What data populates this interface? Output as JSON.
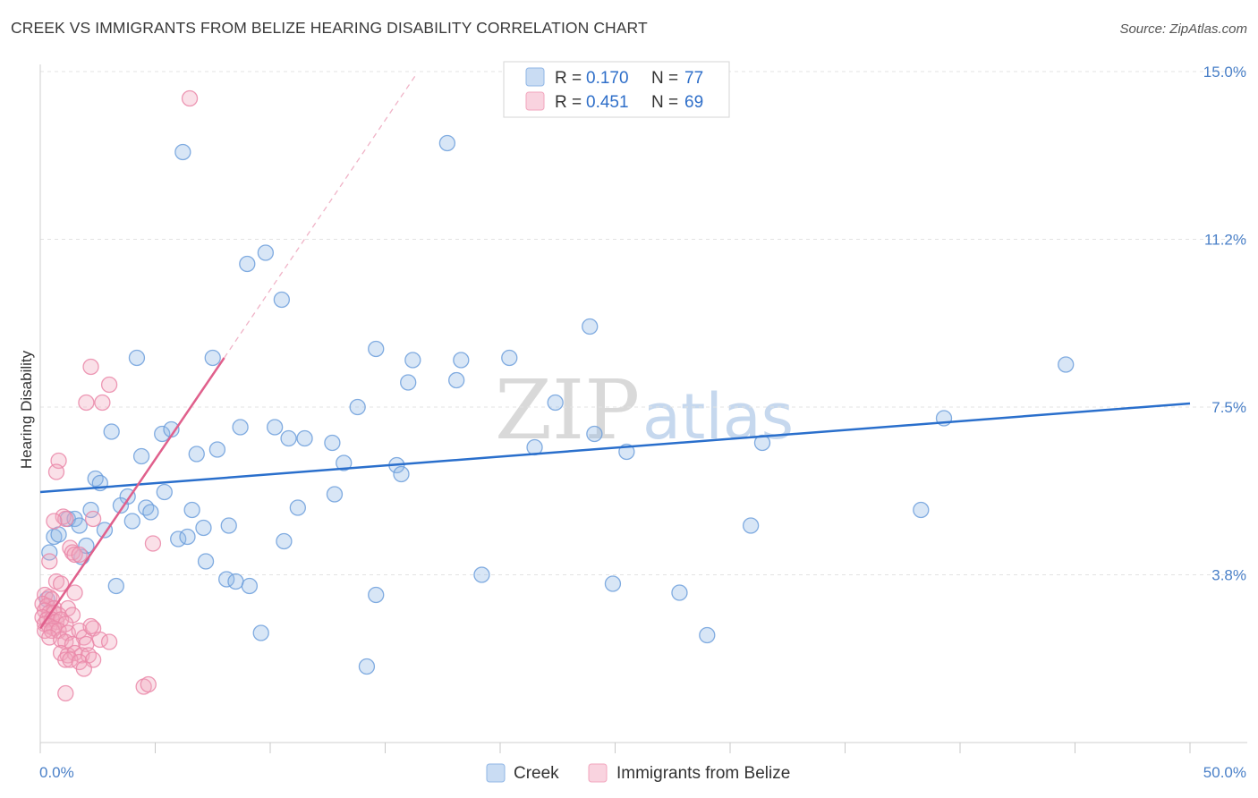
{
  "header": {
    "title": "CREEK VS IMMIGRANTS FROM BELIZE HEARING DISABILITY CORRELATION CHART",
    "source": "Source: ZipAtlas.com"
  },
  "watermark": {
    "zip": "ZIP",
    "atlas": "atlas"
  },
  "legend_top": [
    {
      "r_label": "R = ",
      "r_value": "0.170",
      "n_label": "N = ",
      "n_value": "77",
      "color": "#8fb6e6"
    },
    {
      "r_label": "R = ",
      "r_value": "0.451",
      "n_label": "N = ",
      "n_value": "69",
      "color": "#f2a6be"
    }
  ],
  "legend_bottom": [
    {
      "label": "Creek",
      "color": "#8fb6e6"
    },
    {
      "label": "Immigrants from Belize",
      "color": "#f2a6be"
    }
  ],
  "chart_data": {
    "type": "scatter",
    "xlabel": "",
    "ylabel": "Hearing Disability",
    "xlim": [
      0,
      50
    ],
    "ylim": [
      0,
      15
    ],
    "x_tick_labels": [
      "0.0%",
      "50.0%"
    ],
    "y_ticks": [
      {
        "value": 3.75,
        "label": "3.8%"
      },
      {
        "value": 7.5,
        "label": "7.5%"
      },
      {
        "value": 11.25,
        "label": "11.2%"
      },
      {
        "value": 15.0,
        "label": "15.0%"
      }
    ],
    "grid": true,
    "colors": {
      "creek": "#8fb6e6",
      "creek_line": "#2a6fcc",
      "belize": "#f2a6be",
      "belize_line": "#e0608c"
    },
    "series": [
      {
        "name": "Creek",
        "trend": {
          "x": [
            0,
            50
          ],
          "y": [
            5.6,
            7.58
          ]
        },
        "points": [
          [
            6.2,
            13.2
          ],
          [
            17.7,
            13.4
          ],
          [
            9.0,
            10.7
          ],
          [
            9.8,
            10.95
          ],
          [
            10.5,
            9.9
          ],
          [
            23.9,
            9.3
          ],
          [
            14.6,
            8.8
          ],
          [
            16.2,
            8.55
          ],
          [
            18.3,
            8.55
          ],
          [
            20.4,
            8.6
          ],
          [
            4.2,
            8.6
          ],
          [
            7.5,
            8.6
          ],
          [
            44.6,
            8.45
          ],
          [
            16.0,
            8.05
          ],
          [
            18.1,
            8.1
          ],
          [
            13.8,
            7.5
          ],
          [
            22.4,
            7.6
          ],
          [
            3.1,
            6.95
          ],
          [
            5.3,
            6.9
          ],
          [
            5.7,
            7.0
          ],
          [
            8.7,
            7.05
          ],
          [
            10.2,
            7.05
          ],
          [
            10.8,
            6.8
          ],
          [
            11.5,
            6.8
          ],
          [
            12.7,
            6.7
          ],
          [
            24.1,
            6.9
          ],
          [
            39.3,
            7.25
          ],
          [
            31.4,
            6.7
          ],
          [
            6.8,
            6.45
          ],
          [
            7.7,
            6.55
          ],
          [
            21.5,
            6.6
          ],
          [
            25.5,
            6.5
          ],
          [
            4.4,
            6.4
          ],
          [
            13.2,
            6.25
          ],
          [
            15.5,
            6.2
          ],
          [
            15.7,
            6.0
          ],
          [
            2.4,
            5.9
          ],
          [
            2.6,
            5.8
          ],
          [
            3.8,
            5.5
          ],
          [
            5.4,
            5.6
          ],
          [
            12.8,
            5.55
          ],
          [
            1.2,
            5.0
          ],
          [
            2.2,
            5.2
          ],
          [
            3.5,
            5.3
          ],
          [
            4.6,
            5.25
          ],
          [
            4.8,
            5.15
          ],
          [
            6.6,
            5.2
          ],
          [
            11.2,
            5.25
          ],
          [
            38.3,
            5.2
          ],
          [
            1.5,
            5.0
          ],
          [
            1.7,
            4.85
          ],
          [
            0.6,
            4.6
          ],
          [
            0.8,
            4.65
          ],
          [
            2.8,
            4.75
          ],
          [
            4.0,
            4.95
          ],
          [
            7.1,
            4.8
          ],
          [
            8.2,
            4.85
          ],
          [
            6.0,
            4.55
          ],
          [
            6.4,
            4.6
          ],
          [
            30.9,
            4.85
          ],
          [
            0.4,
            4.25
          ],
          [
            1.8,
            4.15
          ],
          [
            2.0,
            4.4
          ],
          [
            10.6,
            4.5
          ],
          [
            7.2,
            4.05
          ],
          [
            19.2,
            3.75
          ],
          [
            3.3,
            3.5
          ],
          [
            8.1,
            3.65
          ],
          [
            8.5,
            3.6
          ],
          [
            9.1,
            3.5
          ],
          [
            24.9,
            3.55
          ],
          [
            27.8,
            3.35
          ],
          [
            14.6,
            3.3
          ],
          [
            0.3,
            3.2
          ],
          [
            9.6,
            2.45
          ],
          [
            29.0,
            2.4
          ],
          [
            14.2,
            1.7
          ]
        ]
      },
      {
        "name": "Immigrants from Belize",
        "trend": {
          "x": [
            0,
            8.0
          ],
          "y": [
            2.55,
            8.6
          ]
        },
        "trend_extension": {
          "x": [
            8.0,
            16.3
          ],
          "y": [
            8.6,
            14.9
          ]
        },
        "points": [
          [
            6.5,
            14.4
          ],
          [
            2.2,
            8.4
          ],
          [
            3.0,
            8.0
          ],
          [
            2.0,
            7.6
          ],
          [
            2.7,
            7.6
          ],
          [
            0.8,
            6.3
          ],
          [
            0.7,
            6.05
          ],
          [
            1.0,
            5.05
          ],
          [
            1.1,
            5.0
          ],
          [
            2.3,
            5.0
          ],
          [
            0.6,
            4.95
          ],
          [
            1.3,
            4.35
          ],
          [
            1.4,
            4.25
          ],
          [
            1.5,
            4.2
          ],
          [
            1.7,
            4.2
          ],
          [
            4.9,
            4.45
          ],
          [
            0.4,
            4.05
          ],
          [
            0.7,
            3.6
          ],
          [
            0.9,
            3.55
          ],
          [
            1.5,
            3.35
          ],
          [
            0.2,
            3.3
          ],
          [
            0.4,
            3.25
          ],
          [
            0.5,
            3.2
          ],
          [
            0.1,
            3.1
          ],
          [
            0.3,
            3.05
          ],
          [
            0.6,
            3.0
          ],
          [
            1.2,
            3.0
          ],
          [
            0.2,
            2.95
          ],
          [
            0.4,
            2.9
          ],
          [
            0.6,
            2.9
          ],
          [
            0.8,
            2.85
          ],
          [
            1.4,
            2.85
          ],
          [
            0.1,
            2.8
          ],
          [
            0.3,
            2.75
          ],
          [
            0.5,
            2.75
          ],
          [
            0.7,
            2.7
          ],
          [
            0.9,
            2.75
          ],
          [
            1.1,
            2.65
          ],
          [
            0.2,
            2.65
          ],
          [
            0.4,
            2.6
          ],
          [
            0.6,
            2.55
          ],
          [
            0.2,
            2.5
          ],
          [
            0.5,
            2.5
          ],
          [
            0.8,
            2.5
          ],
          [
            1.2,
            2.45
          ],
          [
            1.7,
            2.5
          ],
          [
            1.9,
            2.35
          ],
          [
            2.3,
            2.55
          ],
          [
            0.4,
            2.35
          ],
          [
            0.9,
            2.3
          ],
          [
            1.1,
            2.25
          ],
          [
            1.4,
            2.2
          ],
          [
            2.0,
            2.2
          ],
          [
            2.6,
            2.3
          ],
          [
            3.0,
            2.25
          ],
          [
            0.9,
            2.0
          ],
          [
            1.2,
            1.95
          ],
          [
            1.5,
            2.0
          ],
          [
            1.8,
            1.95
          ],
          [
            2.1,
            1.95
          ],
          [
            1.1,
            1.85
          ],
          [
            1.3,
            1.85
          ],
          [
            1.7,
            1.8
          ],
          [
            2.3,
            1.85
          ],
          [
            1.9,
            1.65
          ],
          [
            4.5,
            1.25
          ],
          [
            4.7,
            1.3
          ],
          [
            1.1,
            1.1
          ],
          [
            2.2,
            2.6
          ]
        ]
      }
    ]
  }
}
